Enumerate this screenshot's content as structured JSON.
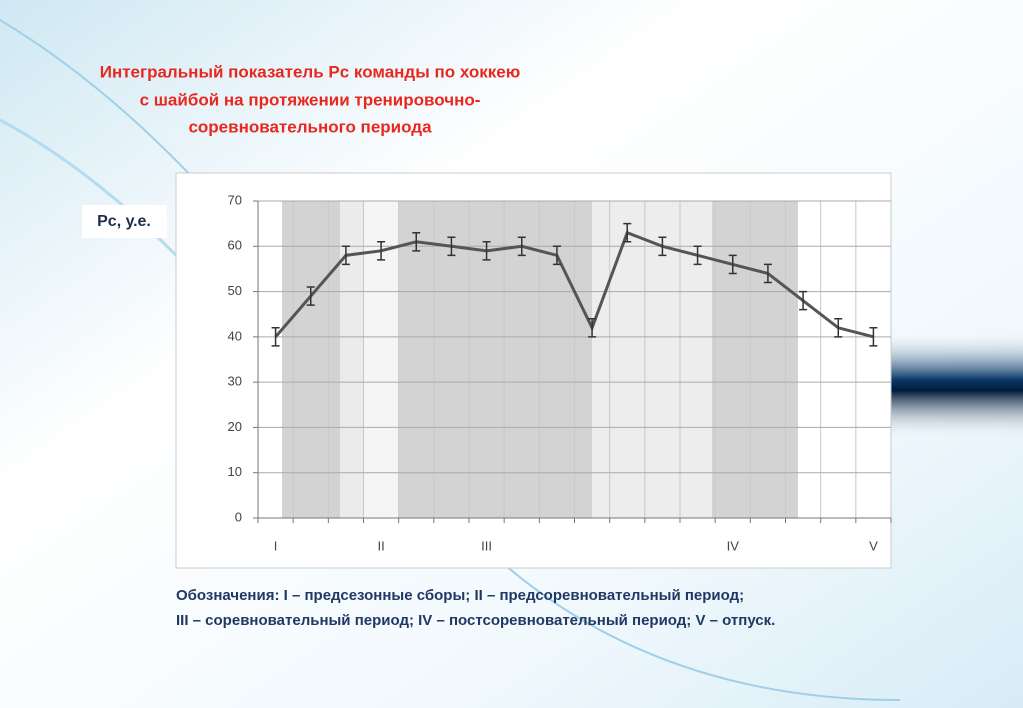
{
  "chart_data": {
    "type": "line",
    "title": [
      "Интегральный показатель Рс команды по хоккею",
      "с шайбой на протяжении тренировочно-",
      "соревновательного периода"
    ],
    "y_label": "Рс, у.е.",
    "notes": [
      "Обозначения: I – предсезонные сборы; II – предсоревновательный период;",
      "III – соревновательный период; IV – постсоревновательный период; V – отпуск."
    ],
    "categories": [
      "I",
      null,
      null,
      "II",
      null,
      null,
      "III",
      null,
      null,
      null,
      null,
      null,
      null,
      "IV",
      null,
      null,
      null,
      "V"
    ],
    "series": [
      {
        "color": "#555555",
        "values": [
          40,
          49,
          58,
          59,
          61,
          60,
          59,
          60,
          58,
          42,
          63,
          60,
          58,
          56,
          54,
          48,
          42,
          40
        ],
        "errors": [
          2,
          2,
          2,
          2,
          2,
          2,
          2,
          2,
          2,
          2,
          2,
          2,
          2,
          2,
          2,
          2,
          2,
          2
        ]
      }
    ],
    "ylim": [
      0,
      70
    ],
    "yticks": [
      0,
      10,
      20,
      30,
      40,
      50,
      60,
      70
    ],
    "grid": true
  }
}
